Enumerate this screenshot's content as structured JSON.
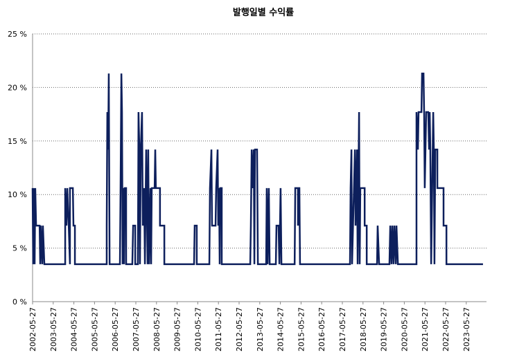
{
  "chart_data": {
    "type": "line",
    "title": "발행일별 수익률",
    "color": "#0d1f5c",
    "grid": true,
    "x": [
      2002.4,
      2002.43,
      2002.47,
      2002.5,
      2002.53,
      2002.57,
      2002.74,
      2002.77,
      2002.8,
      2002.87,
      2002.9,
      2002.97,
      2003.98,
      2003.98,
      2004.04,
      2004.08,
      2004.15,
      2004.21,
      2004.21,
      2004.35,
      2004.38,
      2004.45,
      2004.45,
      2005.99,
      2005.99,
      2006.02,
      2006.06,
      2006.09,
      2006.13,
      2006.63,
      2006.66,
      2006.7,
      2006.73,
      2006.76,
      2006.8,
      2006.83,
      2006.86,
      2006.93,
      2006.93,
      2007.23,
      2007.27,
      2007.37,
      2007.37,
      2007.5,
      2007.53,
      2007.57,
      2007.6,
      2007.64,
      2007.7,
      2007.74,
      2007.8,
      2007.84,
      2007.9,
      2007.97,
      2008.0,
      2008.04,
      2008.11,
      2008.14,
      2008.17,
      2008.31,
      2008.34,
      2008.37,
      2008.57,
      2008.57,
      2008.78,
      2008.78,
      2010.22,
      2010.25,
      2010.35,
      2010.35,
      2010.96,
      2010.99,
      2011.06,
      2011.09,
      2011.26,
      2011.29,
      2011.36,
      2011.39,
      2011.43,
      2011.46,
      2011.49,
      2011.56,
      2011.56,
      2012.94,
      2012.97,
      2013.01,
      2013.04,
      2013.11,
      2013.14,
      2013.17,
      2013.27,
      2013.31,
      2013.71,
      2013.74,
      2013.78,
      2013.84,
      2013.88,
      2014.18,
      2014.21,
      2014.31,
      2014.35,
      2014.41,
      2014.45,
      2015.09,
      2015.12,
      2015.25,
      2015.25,
      2015.29,
      2015.32,
      2015.35,
      2017.77,
      2017.8,
      2017.84,
      2017.87,
      2018.01,
      2018.04,
      2018.11,
      2018.14,
      2018.21,
      2018.24,
      2018.27,
      2018.48,
      2018.48,
      2018.58,
      2018.58,
      2019.08,
      2019.11,
      2019.18,
      2019.68,
      2019.72,
      2019.78,
      2019.82,
      2019.88,
      2019.92,
      2019.99,
      2020.02,
      2020.09,
      2020.99,
      2020.99,
      2021.06,
      2021.09,
      2021.23,
      2021.26,
      2021.33,
      2021.36,
      2021.39,
      2021.46,
      2021.56,
      2021.6,
      2021.63,
      2021.66,
      2021.7,
      2021.8,
      2021.83,
      2021.86,
      2021.9,
      2022.0,
      2022.0,
      2022.3,
      2022.3,
      2022.44,
      2022.44,
      2024.21
    ],
    "values": [
      10.6,
      3.5,
      10.6,
      3.5,
      10.6,
      7.1,
      7.1,
      3.5,
      7.1,
      3.5,
      7.1,
      3.5,
      3.5,
      10.6,
      7.1,
      10.6,
      7.1,
      3.5,
      10.6,
      10.6,
      7.1,
      7.1,
      3.5,
      3.5,
      7.1,
      17.7,
      14.2,
      21.3,
      3.5,
      3.5,
      10.6,
      21.3,
      17.7,
      3.5,
      10.6,
      3.5,
      10.6,
      10.6,
      3.5,
      3.5,
      7.1,
      7.1,
      3.5,
      3.5,
      17.7,
      14.2,
      3.5,
      14.2,
      17.7,
      7.1,
      10.6,
      3.5,
      14.2,
      3.5,
      14.2,
      3.5,
      10.6,
      3.5,
      10.6,
      10.6,
      14.2,
      10.6,
      10.6,
      7.1,
      7.1,
      3.5,
      3.5,
      7.1,
      7.1,
      3.5,
      3.5,
      10.6,
      14.2,
      7.1,
      7.1,
      10.6,
      14.2,
      7.1,
      10.6,
      3.5,
      10.6,
      10.6,
      3.5,
      3.5,
      7.1,
      14.2,
      10.6,
      14.2,
      3.5,
      14.2,
      14.2,
      3.5,
      3.5,
      10.6,
      3.5,
      10.6,
      3.5,
      3.5,
      7.1,
      7.1,
      3.5,
      10.6,
      3.5,
      3.5,
      10.6,
      10.6,
      7.1,
      10.6,
      10.6,
      3.5,
      3.5,
      10.6,
      14.2,
      3.5,
      14.2,
      7.1,
      14.2,
      3.5,
      17.7,
      3.5,
      10.6,
      10.6,
      7.1,
      7.1,
      3.5,
      3.5,
      7.1,
      3.5,
      3.5,
      7.1,
      3.5,
      7.1,
      3.5,
      7.1,
      3.5,
      7.1,
      3.5,
      3.5,
      17.7,
      14.2,
      17.7,
      17.7,
      21.3,
      21.3,
      17.7,
      10.6,
      17.7,
      17.7,
      14.2,
      17.7,
      14.2,
      3.5,
      17.7,
      14.2,
      3.5,
      14.2,
      14.2,
      10.6,
      10.6,
      7.1,
      7.1,
      3.5,
      3.5
    ],
    "xlim": [
      2002.4,
      2024.38
    ],
    "xticks": [
      {
        "value": 2002.4,
        "label": "2002-05-27"
      },
      {
        "value": 2003.4,
        "label": "2003-05-27"
      },
      {
        "value": 2004.4,
        "label": "2004-05-27"
      },
      {
        "value": 2005.4,
        "label": "2005-05-27"
      },
      {
        "value": 2006.4,
        "label": "2006-05-27"
      },
      {
        "value": 2007.4,
        "label": "2007-05-27"
      },
      {
        "value": 2008.4,
        "label": "2008-05-27"
      },
      {
        "value": 2009.4,
        "label": "2009-05-27"
      },
      {
        "value": 2010.4,
        "label": "2010-05-27"
      },
      {
        "value": 2011.4,
        "label": "2011-05-27"
      },
      {
        "value": 2012.4,
        "label": "2012-05-27"
      },
      {
        "value": 2013.4,
        "label": "2013-05-27"
      },
      {
        "value": 2014.4,
        "label": "2014-05-27"
      },
      {
        "value": 2015.4,
        "label": "2015-05-27"
      },
      {
        "value": 2016.4,
        "label": "2016-05-27"
      },
      {
        "value": 2017.4,
        "label": "2017-05-27"
      },
      {
        "value": 2018.4,
        "label": "2018-05-27"
      },
      {
        "value": 2019.4,
        "label": "2019-05-27"
      },
      {
        "value": 2020.4,
        "label": "2020-05-27"
      },
      {
        "value": 2021.4,
        "label": "2021-05-27"
      },
      {
        "value": 2022.4,
        "label": "2022-05-27"
      },
      {
        "value": 2023.4,
        "label": "2023-05-27"
      }
    ],
    "ylim": [
      0,
      25
    ],
    "yticks": [
      {
        "value": 0,
        "label": "0 %"
      },
      {
        "value": 5,
        "label": "5 %"
      },
      {
        "value": 10,
        "label": "10 %"
      },
      {
        "value": 15,
        "label": "15 %"
      },
      {
        "value": 20,
        "label": "20 %"
      },
      {
        "value": 25,
        "label": "25 %"
      }
    ]
  }
}
